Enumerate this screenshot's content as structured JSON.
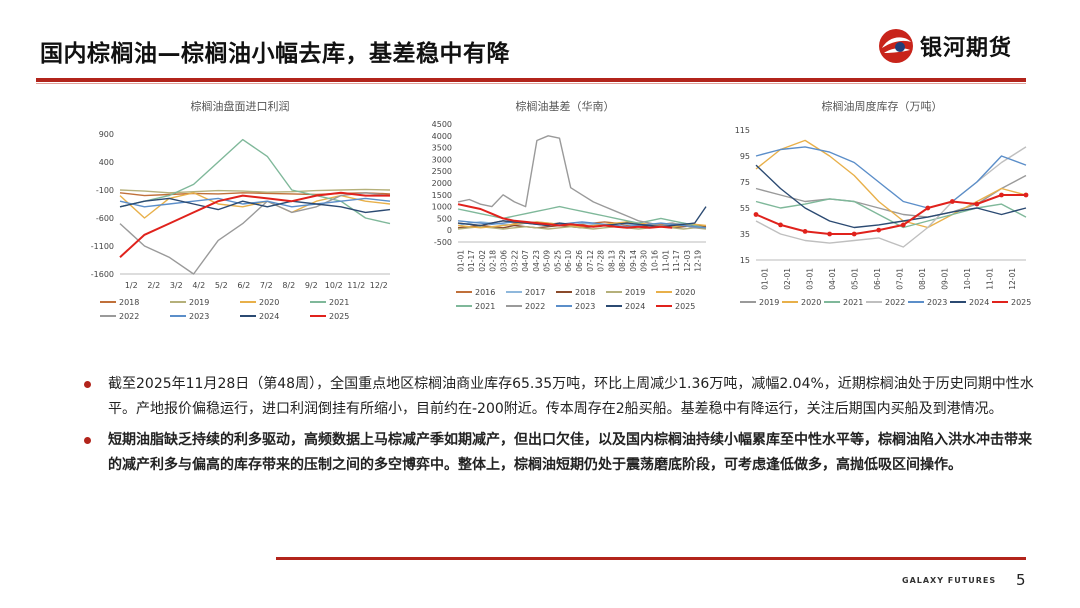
{
  "header": {
    "title": "国内棕榈油—棕榈油小幅去库，基差稳中有降",
    "logo_text": "银河期货",
    "accent_color": "#b2241b"
  },
  "charts": {
    "import_profit": {
      "title": "棕榈油盘面进口利润",
      "legend": [
        "2018",
        "2019",
        "2020",
        "2021",
        "2022",
        "2023",
        "2024",
        "2025"
      ]
    },
    "basis": {
      "title": "棕榈油基差（华南）",
      "legend": [
        "2016",
        "2017",
        "2018",
        "2019",
        "2020",
        "2021",
        "2022",
        "2023",
        "2024",
        "2025"
      ]
    },
    "inventory": {
      "title": "棕榈油周度库存（万吨）",
      "legend": [
        "2019",
        "2020",
        "2021",
        "2022",
        "2023",
        "2024",
        "2025"
      ]
    }
  },
  "chart_data": [
    {
      "type": "line",
      "title": "棕榈油盘面进口利润",
      "x_ticks": [
        "1/2",
        "2/2",
        "3/2",
        "4/2",
        "5/2",
        "6/2",
        "7/2",
        "8/2",
        "9/2",
        "10/2",
        "11/2",
        "12/2"
      ],
      "y_ticks": [
        900,
        400,
        -100,
        -600,
        -1100,
        -1600
      ],
      "ylim": [
        -1600,
        900
      ],
      "series": [
        {
          "name": "2018",
          "color": "#c0703a",
          "values": [
            -150,
            -200,
            -180,
            -160,
            -170,
            -150,
            -160,
            -170,
            -180,
            -160,
            -150,
            -170
          ]
        },
        {
          "name": "2019",
          "color": "#b5b07a",
          "values": [
            -100,
            -120,
            -150,
            -130,
            -110,
            -120,
            -140,
            -130,
            -110,
            -100,
            -90,
            -100
          ]
        },
        {
          "name": "2020",
          "color": "#e8b04a",
          "values": [
            -200,
            -600,
            -250,
            -150,
            -350,
            -400,
            -300,
            -500,
            -300,
            -200,
            -300,
            -350
          ]
        },
        {
          "name": "2021",
          "color": "#7fb89a",
          "values": [
            -400,
            -300,
            -200,
            0,
            400,
            800,
            500,
            -100,
            -200,
            -300,
            -600,
            -700
          ]
        },
        {
          "name": "2022",
          "color": "#9a9a9a",
          "values": [
            -700,
            -1100,
            -1300,
            -1600,
            -1000,
            -700,
            -300,
            -500,
            -400,
            -200,
            -150,
            -200
          ]
        },
        {
          "name": "2023",
          "color": "#5b8ec9",
          "values": [
            -300,
            -400,
            -350,
            -300,
            -250,
            -350,
            -300,
            -400,
            -350,
            -300,
            -250,
            -300
          ]
        },
        {
          "name": "2024",
          "color": "#2b4a72",
          "values": [
            -400,
            -300,
            -250,
            -350,
            -450,
            -300,
            -400,
            -300,
            -350,
            -400,
            -500,
            -450
          ]
        },
        {
          "name": "2025",
          "color": "#e0221c",
          "values": [
            -1300,
            -900,
            -700,
            -500,
            -300,
            -200,
            -250,
            -300,
            -200,
            -150,
            -200,
            -200
          ]
        }
      ]
    },
    {
      "type": "line",
      "title": "棕榈油基差（华南）",
      "x_ticks": [
        "01-01",
        "01-17",
        "02-02",
        "02-18",
        "03-06",
        "03-22",
        "04-07",
        "04-23",
        "05-09",
        "05-25",
        "06-10",
        "06-26",
        "07-12",
        "07-28",
        "08-13",
        "08-29",
        "09-14",
        "09-30",
        "10-16",
        "11-01",
        "11-17",
        "12-03",
        "12-19"
      ],
      "y_ticks": [
        4500,
        4000,
        3500,
        3000,
        2500,
        2000,
        1500,
        1000,
        500,
        0,
        -500
      ],
      "ylim": [
        -500,
        4500
      ],
      "series": [
        {
          "name": "2016",
          "color": "#c0703a",
          "values": [
            300,
            250,
            200,
            300,
            400,
            300,
            350,
            300,
            250,
            300,
            200,
            250,
            300,
            350,
            300,
            200,
            150,
            200,
            250,
            300,
            200,
            150,
            100
          ]
        },
        {
          "name": "2017",
          "color": "#8fb8dc",
          "values": [
            200,
            300,
            350,
            300,
            250,
            200,
            300,
            350,
            300,
            250,
            200,
            300,
            250,
            200,
            300,
            250,
            200,
            150,
            200,
            250,
            300,
            200,
            150
          ]
        },
        {
          "name": "2018",
          "color": "#8a4a2a",
          "values": [
            100,
            150,
            200,
            150,
            100,
            200,
            150,
            100,
            150,
            200,
            150,
            100,
            150,
            200,
            150,
            100,
            150,
            200,
            150,
            100,
            150,
            200,
            150
          ]
        },
        {
          "name": "2019",
          "color": "#b5b07a",
          "values": [
            50,
            100,
            150,
            100,
            50,
            100,
            150,
            100,
            50,
            100,
            150,
            100,
            50,
            100,
            150,
            100,
            50,
            100,
            150,
            100,
            50,
            100,
            50
          ]
        },
        {
          "name": "2020",
          "color": "#e8b04a",
          "values": [
            200,
            150,
            100,
            150,
            200,
            250,
            300,
            350,
            300,
            250,
            200,
            150,
            200,
            250,
            300,
            350,
            300,
            250,
            200,
            150,
            200,
            250,
            200
          ]
        },
        {
          "name": "2021",
          "color": "#7fb89a",
          "values": [
            900,
            800,
            700,
            600,
            500,
            600,
            700,
            800,
            900,
            1000,
            900,
            800,
            700,
            600,
            500,
            400,
            300,
            400,
            500,
            400,
            300,
            200,
            100
          ]
        },
        {
          "name": "2022",
          "color": "#9a9a9a",
          "values": [
            1200,
            1300,
            1100,
            1000,
            1500,
            1200,
            1000,
            3800,
            4000,
            3900,
            1800,
            1500,
            1200,
            1000,
            800,
            600,
            400,
            300,
            200,
            300,
            200,
            100,
            100
          ]
        },
        {
          "name": "2023",
          "color": "#5b8ec9",
          "values": [
            400,
            350,
            300,
            250,
            300,
            350,
            300,
            250,
            200,
            250,
            300,
            350,
            300,
            250,
            200,
            150,
            200,
            250,
            300,
            250,
            200,
            150,
            100
          ]
        },
        {
          "name": "2024",
          "color": "#2b4a72",
          "values": [
            300,
            250,
            200,
            300,
            400,
            350,
            300,
            250,
            200,
            300,
            250,
            200,
            150,
            200,
            250,
            300,
            250,
            200,
            150,
            200,
            250,
            300,
            1000
          ]
        },
        {
          "name": "2025",
          "color": "#e0221c",
          "values": [
            1100,
            1000,
            900,
            700,
            500,
            400,
            350,
            300,
            250,
            200,
            250,
            200,
            150,
            200,
            150,
            100,
            150,
            100,
            150,
            100,
            null,
            null,
            null
          ]
        }
      ]
    },
    {
      "type": "line",
      "title": "棕榈油周度库存（万吨）",
      "x_ticks": [
        "01-01",
        "02-01",
        "03-01",
        "04-01",
        "05-01",
        "06-01",
        "07-01",
        "08-01",
        "09-01",
        "10-01",
        "11-01",
        "12-01"
      ],
      "y_ticks": [
        115,
        95,
        75,
        55,
        35,
        15
      ],
      "ylim": [
        15,
        115
      ],
      "series": [
        {
          "name": "2019",
          "color": "#9a9a9a",
          "values": [
            70,
            65,
            60,
            62,
            60,
            55,
            50,
            48,
            52,
            58,
            70,
            80
          ]
        },
        {
          "name": "2020",
          "color": "#e8b04a",
          "values": [
            85,
            100,
            107,
            95,
            80,
            60,
            45,
            40,
            50,
            60,
            70,
            65
          ]
        },
        {
          "name": "2021",
          "color": "#7fb89a",
          "values": [
            60,
            55,
            58,
            62,
            60,
            50,
            40,
            45,
            50,
            55,
            58,
            48
          ]
        },
        {
          "name": "2022",
          "color": "#bfbfbf",
          "values": [
            45,
            35,
            30,
            28,
            30,
            32,
            25,
            40,
            60,
            75,
            90,
            102
          ]
        },
        {
          "name": "2023",
          "color": "#5b8ec9",
          "values": [
            95,
            100,
            102,
            98,
            90,
            75,
            60,
            55,
            60,
            75,
            95,
            88
          ]
        },
        {
          "name": "2024",
          "color": "#2b4a72",
          "values": [
            88,
            70,
            55,
            45,
            40,
            42,
            45,
            48,
            52,
            55,
            50,
            55
          ]
        },
        {
          "name": "2025",
          "color": "#e0221c",
          "values": [
            50,
            42,
            37,
            35,
            35,
            38,
            42,
            55,
            60,
            58,
            65,
            65
          ]
        }
      ]
    }
  ],
  "bullets": [
    "截至2025年11月28日（第48周），全国重点地区棕榈油商业库存65.35万吨，环比上周减少1.36万吨，减幅2.04%，近期棕榈油处于历史同期中性水平。产地报价偏稳运行，进口利润倒挂有所缩小，目前约在-200附近。传本周存在2船买船。基差稳中有降运行，关注后期国内买船及到港情况。",
    "短期油脂缺乏持续的利多驱动，高频数据上马棕减产季如期减产，但出口欠佳，以及国内棕榈油持续小幅累库至中性水平等，棕榈油陷入洪水冲击带来的减产利多与偏高的库存带来的压制之间的多空博弈中。整体上，棕榈油短期仍处于震荡磨底阶段，可考虑逢低做多，高抛低吸区间操作。"
  ],
  "footer": {
    "brand": "GALAXY FUTURES",
    "page": "5"
  }
}
